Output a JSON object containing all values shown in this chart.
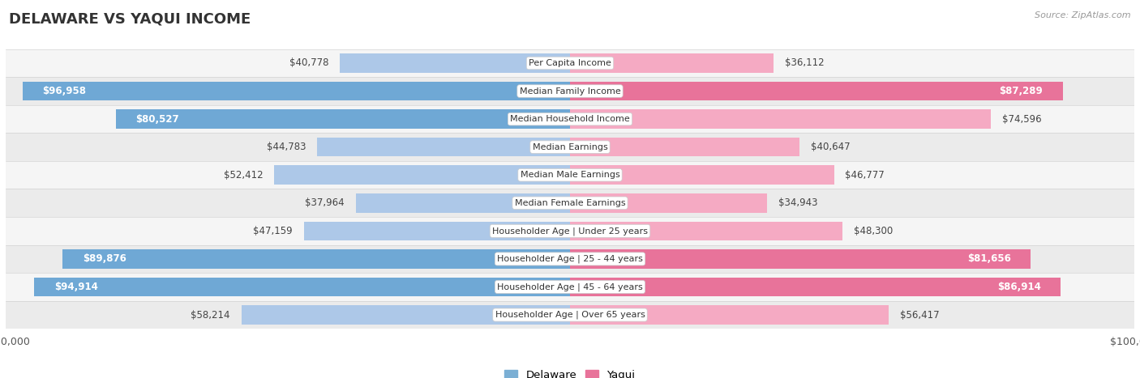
{
  "title": "DELAWARE VS YAQUI INCOME",
  "source": "Source: ZipAtlas.com",
  "categories": [
    "Per Capita Income",
    "Median Family Income",
    "Median Household Income",
    "Median Earnings",
    "Median Male Earnings",
    "Median Female Earnings",
    "Householder Age | Under 25 years",
    "Householder Age | 25 - 44 years",
    "Householder Age | 45 - 64 years",
    "Householder Age | Over 65 years"
  ],
  "delaware_values": [
    40778,
    96958,
    80527,
    44783,
    52412,
    37964,
    47159,
    89876,
    94914,
    58214
  ],
  "yaqui_values": [
    36112,
    87289,
    74596,
    40647,
    46777,
    34943,
    48300,
    81656,
    86914,
    56417
  ],
  "max_value": 100000,
  "delaware_color_light": "#adc8e8",
  "delaware_color_dark": "#6fa8d5",
  "yaqui_color_light": "#f5aac3",
  "yaqui_color_dark": "#e8739a",
  "threshold_dark_label": 75000,
  "row_bg_even": "#f5f5f5",
  "row_bg_odd": "#ebebeb",
  "legend_delaware_color": "#7bafd4",
  "legend_yaqui_color": "#e8739a",
  "title_fontsize": 13,
  "label_fontsize": 8.5,
  "category_fontsize": 8,
  "axis_fontsize": 9
}
